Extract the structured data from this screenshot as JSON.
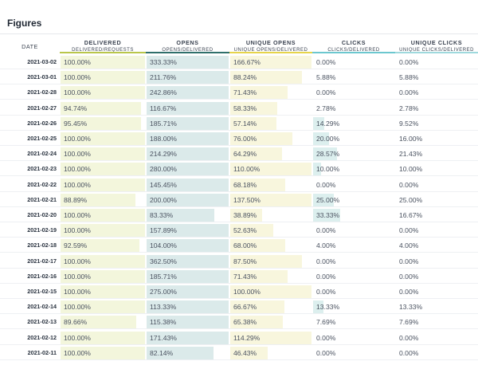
{
  "title": "Figures",
  "columns": [
    {
      "key": "date",
      "label": "DATE",
      "sub": ""
    },
    {
      "key": "delivered",
      "label": "DELIVERED",
      "sub": "DELIVERED/REQUESTS",
      "color": "#f3f6dc",
      "bar": "#b9c64a"
    },
    {
      "key": "opens",
      "label": "OPENS",
      "sub": "OPENS/DELIVERED",
      "color": "#dbeaea",
      "bar": "#2f6f6b"
    },
    {
      "key": "unique_opens",
      "label": "UNIQUE OPENS",
      "sub": "UNIQUE OPENS/DELIVERED",
      "color": "#f8f6dd",
      "bar": "#e6d44a"
    },
    {
      "key": "clicks",
      "label": "CLICKS",
      "sub": "CLICKS/DELIVERED",
      "color": "#dcefee",
      "bar": "#6cc7cf"
    },
    {
      "key": "unique_clicks",
      "label": "UNIQUE CLICKS",
      "sub": "UNIQUE CLICKS/DELIVERED",
      "color": "#e2f1f1",
      "bar": "#9fd9dd"
    }
  ],
  "rows": [
    {
      "date": "2021-03-02",
      "delivered": "100.00%",
      "opens": "333.33%",
      "unique_opens": "166.67%",
      "clicks": "0.00%",
      "unique_clicks": "0.00%",
      "fill": [
        1.0,
        1.0,
        1.0,
        0.0,
        0.0
      ]
    },
    {
      "date": "2021-03-01",
      "delivered": "100.00%",
      "opens": "211.76%",
      "unique_opens": "88.24%",
      "clicks": "5.88%",
      "unique_clicks": "5.88%",
      "fill": [
        1.0,
        1.0,
        0.88,
        0.0,
        0.0
      ]
    },
    {
      "date": "2021-02-28",
      "delivered": "100.00%",
      "opens": "242.86%",
      "unique_opens": "71.43%",
      "clicks": "0.00%",
      "unique_clicks": "0.00%",
      "fill": [
        1.0,
        1.0,
        0.71,
        0.0,
        0.0
      ]
    },
    {
      "date": "2021-02-27",
      "delivered": "94.74%",
      "opens": "116.67%",
      "unique_opens": "58.33%",
      "clicks": "2.78%",
      "unique_clicks": "2.78%",
      "fill": [
        0.95,
        1.0,
        0.58,
        0.0,
        0.0
      ]
    },
    {
      "date": "2021-02-26",
      "delivered": "95.45%",
      "opens": "185.71%",
      "unique_opens": "57.14%",
      "clicks": "14.29%",
      "unique_clicks": "9.52%",
      "fill": [
        0.95,
        1.0,
        0.57,
        0.14,
        0.0
      ]
    },
    {
      "date": "2021-02-25",
      "delivered": "100.00%",
      "opens": "188.00%",
      "unique_opens": "76.00%",
      "clicks": "20.00%",
      "unique_clicks": "16.00%",
      "fill": [
        1.0,
        1.0,
        0.76,
        0.2,
        0.0
      ]
    },
    {
      "date": "2021-02-24",
      "delivered": "100.00%",
      "opens": "214.29%",
      "unique_opens": "64.29%",
      "clicks": "28.57%",
      "unique_clicks": "21.43%",
      "fill": [
        1.0,
        1.0,
        0.64,
        0.29,
        0.0
      ]
    },
    {
      "date": "2021-02-23",
      "delivered": "100.00%",
      "opens": "280.00%",
      "unique_opens": "110.00%",
      "clicks": "10.00%",
      "unique_clicks": "10.00%",
      "fill": [
        1.0,
        1.0,
        1.0,
        0.1,
        0.0
      ]
    },
    {
      "date": "2021-02-22",
      "delivered": "100.00%",
      "opens": "145.45%",
      "unique_opens": "68.18%",
      "clicks": "0.00%",
      "unique_clicks": "0.00%",
      "fill": [
        1.0,
        1.0,
        0.68,
        0.0,
        0.0
      ]
    },
    {
      "date": "2021-02-21",
      "delivered": "88.89%",
      "opens": "200.00%",
      "unique_opens": "137.50%",
      "clicks": "25.00%",
      "unique_clicks": "25.00%",
      "fill": [
        0.89,
        1.0,
        1.0,
        0.25,
        0.0
      ]
    },
    {
      "date": "2021-02-20",
      "delivered": "100.00%",
      "opens": "83.33%",
      "unique_opens": "38.89%",
      "clicks": "33.33%",
      "unique_clicks": "16.67%",
      "fill": [
        1.0,
        0.83,
        0.39,
        0.33,
        0.0
      ]
    },
    {
      "date": "2021-02-19",
      "delivered": "100.00%",
      "opens": "157.89%",
      "unique_opens": "52.63%",
      "clicks": "0.00%",
      "unique_clicks": "0.00%",
      "fill": [
        1.0,
        1.0,
        0.53,
        0.0,
        0.0
      ]
    },
    {
      "date": "2021-02-18",
      "delivered": "92.59%",
      "opens": "104.00%",
      "unique_opens": "68.00%",
      "clicks": "4.00%",
      "unique_clicks": "4.00%",
      "fill": [
        0.93,
        1.0,
        0.68,
        0.0,
        0.0
      ]
    },
    {
      "date": "2021-02-17",
      "delivered": "100.00%",
      "opens": "362.50%",
      "unique_opens": "87.50%",
      "clicks": "0.00%",
      "unique_clicks": "0.00%",
      "fill": [
        1.0,
        1.0,
        0.88,
        0.0,
        0.0
      ]
    },
    {
      "date": "2021-02-16",
      "delivered": "100.00%",
      "opens": "185.71%",
      "unique_opens": "71.43%",
      "clicks": "0.00%",
      "unique_clicks": "0.00%",
      "fill": [
        1.0,
        1.0,
        0.71,
        0.0,
        0.0
      ]
    },
    {
      "date": "2021-02-15",
      "delivered": "100.00%",
      "opens": "275.00%",
      "unique_opens": "100.00%",
      "clicks": "0.00%",
      "unique_clicks": "0.00%",
      "fill": [
        1.0,
        1.0,
        1.0,
        0.0,
        0.0
      ]
    },
    {
      "date": "2021-02-14",
      "delivered": "100.00%",
      "opens": "113.33%",
      "unique_opens": "66.67%",
      "clicks": "13.33%",
      "unique_clicks": "13.33%",
      "fill": [
        1.0,
        1.0,
        0.67,
        0.13,
        0.0
      ]
    },
    {
      "date": "2021-02-13",
      "delivered": "89.66%",
      "opens": "115.38%",
      "unique_opens": "65.38%",
      "clicks": "7.69%",
      "unique_clicks": "7.69%",
      "fill": [
        0.9,
        1.0,
        0.65,
        0.0,
        0.0
      ]
    },
    {
      "date": "2021-02-12",
      "delivered": "100.00%",
      "opens": "171.43%",
      "unique_opens": "114.29%",
      "clicks": "0.00%",
      "unique_clicks": "0.00%",
      "fill": [
        1.0,
        1.0,
        1.0,
        0.0,
        0.0
      ]
    },
    {
      "date": "2021-02-11",
      "delivered": "100.00%",
      "opens": "82.14%",
      "unique_opens": "46.43%",
      "clicks": "0.00%",
      "unique_clicks": "0.00%",
      "fill": [
        1.0,
        0.82,
        0.46,
        0.0,
        0.0
      ]
    }
  ]
}
